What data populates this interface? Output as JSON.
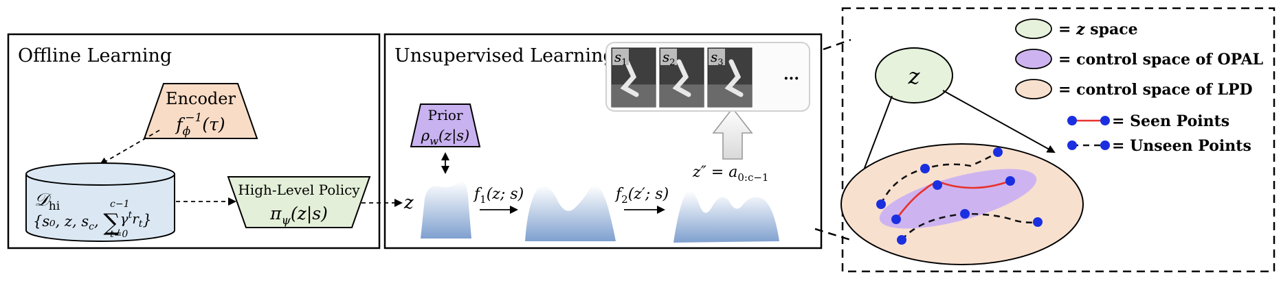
{
  "offline": {
    "title": "Offline Learning",
    "encoder": {
      "label": "Encoder",
      "formula": "f",
      "sub": "ϕ",
      "sup": "−1",
      "arg": "(τ)"
    },
    "dataset": {
      "name": "𝒟",
      "name_sub": "hi",
      "tuple": "{s₀, z, s",
      "tuple_sub": "c",
      "sum_sup": "c−1",
      "sum_sub": "t=0",
      "tail": "γ",
      "tail_sup": "t",
      "tail2": "r",
      "tail2_sub": "t",
      "close": "}"
    },
    "policy": {
      "label": "High-Level Policy",
      "formula": "π",
      "sub": "ψ",
      "arg": "(z|s)"
    },
    "z_out": "z"
  },
  "unsupervised": {
    "title": "Unsupervised Learning",
    "prior": {
      "label": "Prior",
      "formula": "ρ",
      "sub": "w",
      "arg": "(z|s)"
    },
    "f1": {
      "name": "f",
      "sub": "1",
      "arg": "(z; s)"
    },
    "f2": {
      "name": "f",
      "sub": "2",
      "arg": "(z′; s)"
    },
    "zpp": {
      "lhs": "z″ = a",
      "sub": "0:c−1"
    },
    "frames": [
      {
        "name": "s",
        "sub": "1"
      },
      {
        "name": "s",
        "sub": "2"
      },
      {
        "name": "s",
        "sub": "3"
      }
    ],
    "ellipsis": "..."
  },
  "legend": {
    "z_space": {
      "label_z": "z",
      "label_rest": " space",
      "color": "#e6f2dc"
    },
    "opal": {
      "label": "= control space of OPAL",
      "color": "#cdb4f0"
    },
    "lpd": {
      "label": "= control space of LPD",
      "color": "#f8e0cf"
    },
    "seen": {
      "label": "= Seen Points",
      "color": "#e8312a"
    },
    "unseen": {
      "label": "= Unseen Points",
      "color": "#111111"
    },
    "eq": "= ",
    "point_color": "#1a2fe0"
  },
  "right_panel": {
    "z_node": "z"
  }
}
